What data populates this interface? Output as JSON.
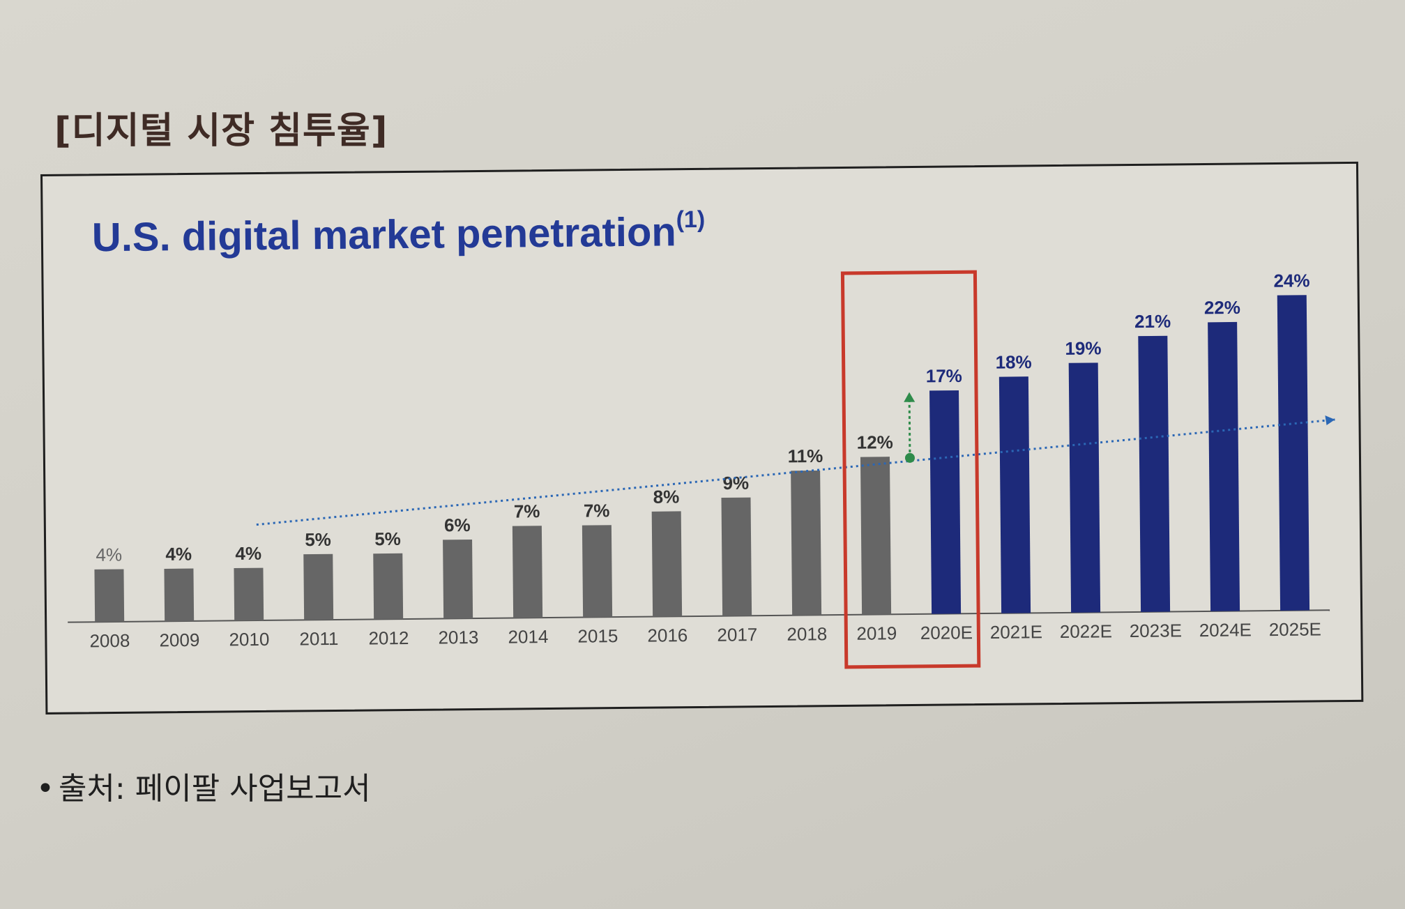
{
  "page": {
    "heading": "[디지털 시장 침투율]",
    "source": "출처: 페이팔 사업보고서"
  },
  "chart_data": {
    "type": "bar",
    "title": "U.S. digital market penetration",
    "title_superscript": "(1)",
    "categories": [
      "2008",
      "2009",
      "2010",
      "2011",
      "2012",
      "2013",
      "2014",
      "2015",
      "2016",
      "2017",
      "2018",
      "2019",
      "2020E",
      "2021E",
      "2022E",
      "2023E",
      "2024E",
      "2025E"
    ],
    "values": [
      4,
      4,
      4,
      5,
      5,
      6,
      7,
      7,
      8,
      9,
      11,
      12,
      17,
      18,
      19,
      21,
      22,
      24
    ],
    "value_labels": [
      "4%",
      "4%",
      "4%",
      "5%",
      "5%",
      "6%",
      "7%",
      "7%",
      "8%",
      "9%",
      "11%",
      "12%",
      "17%",
      "18%",
      "19%",
      "21%",
      "22%",
      "24%"
    ],
    "unit": "%",
    "ylim": [
      0,
      26
    ],
    "grid": false,
    "legend": "none",
    "highlight": [
      "2019",
      "2020E"
    ],
    "trendline": true,
    "colors": {
      "actual": "#666666",
      "estimate": "#1d2a7a",
      "title": "#233a96",
      "highlight_box": "#c8392b",
      "arrow": "#2e8b4a",
      "trend": "#2b67b5"
    }
  }
}
